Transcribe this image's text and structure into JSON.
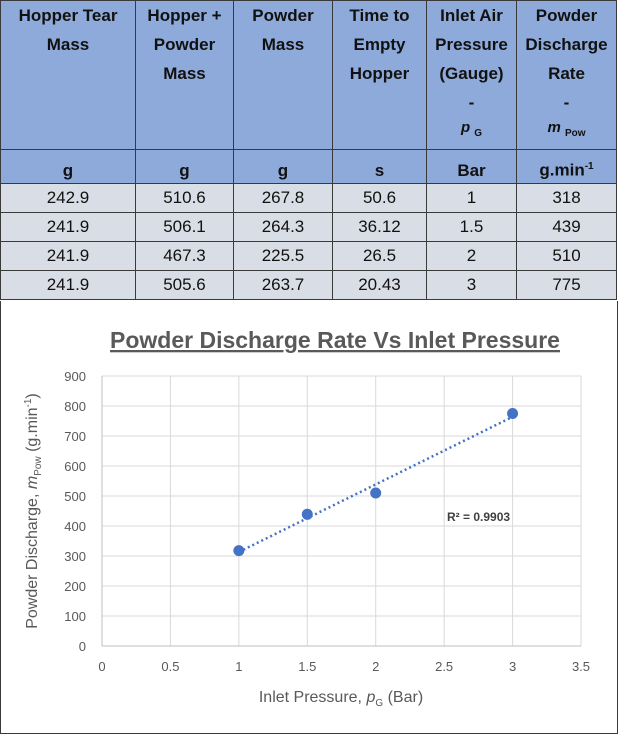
{
  "table": {
    "headers": [
      {
        "label": "Hopper Tear\nMass",
        "symbol": ""
      },
      {
        "label": "Hopper +\nPowder\nMass",
        "symbol": ""
      },
      {
        "label": "Powder\nMass",
        "symbol": ""
      },
      {
        "label": "Time to\nEmpty\nHopper",
        "symbol": ""
      },
      {
        "label": "Inlet Air\nPressure\n(Gauge)\n-",
        "symbol": "p",
        "symbol_sub": "G"
      },
      {
        "label": "Powder\nDischarge\nRate\n-",
        "symbol": "m",
        "symbol_sub": "Pow"
      }
    ],
    "units": [
      "g",
      "g",
      "g",
      "s",
      "Bar",
      "g.min"
    ],
    "units_sup": [
      "",
      "",
      "",
      "",
      "",
      "-1"
    ],
    "rows": [
      [
        "242.9",
        "510.6",
        "267.8",
        "50.6",
        "1",
        "318"
      ],
      [
        "241.9",
        "506.1",
        "264.3",
        "36.12",
        "1.5",
        "439"
      ],
      [
        "241.9",
        "467.3",
        "225.5",
        "26.5",
        "2",
        "510"
      ],
      [
        "241.9",
        "505.6",
        "263.7",
        "20.43",
        "3",
        "775"
      ]
    ]
  },
  "chart_data": {
    "type": "scatter",
    "title": "Powder Discharge Rate Vs Inlet Pressure",
    "xlabel": {
      "text": "Inlet Pressure, ",
      "symbol": "p",
      "symbol_sub": "G",
      "suffix": " (Bar)"
    },
    "ylabel": {
      "text": "Powder Discharge, ",
      "symbol": "m",
      "symbol_sub": "Pow",
      "suffix": " (g.min",
      "suffix_sup": "-1",
      "suffix_end": ")"
    },
    "x": [
      1,
      1.5,
      2,
      3
    ],
    "y": [
      318,
      439,
      510,
      775
    ],
    "xlim": [
      0,
      3.5
    ],
    "ylim": [
      0,
      900
    ],
    "xticks": [
      0,
      0.5,
      1,
      1.5,
      2,
      2.5,
      3,
      3.5
    ],
    "xtick_labels": [
      "0",
      "0.5",
      "1",
      "1.5",
      "2",
      "2.5",
      "3",
      "3.5"
    ],
    "yticks": [
      0,
      100,
      200,
      300,
      400,
      500,
      600,
      700,
      800,
      900
    ],
    "ytick_labels": [
      "0",
      "100",
      "200",
      "300",
      "400",
      "500",
      "600",
      "700",
      "800",
      "900"
    ],
    "grid": true,
    "trendline": {
      "type": "linear",
      "from_x": 1,
      "to_x": 3,
      "r2_label": "R² = 0.9903"
    },
    "colors": {
      "marker": "#4472c4",
      "trendline": "#4472c4",
      "grid": "#d9d9d9",
      "text": "#595959"
    }
  }
}
